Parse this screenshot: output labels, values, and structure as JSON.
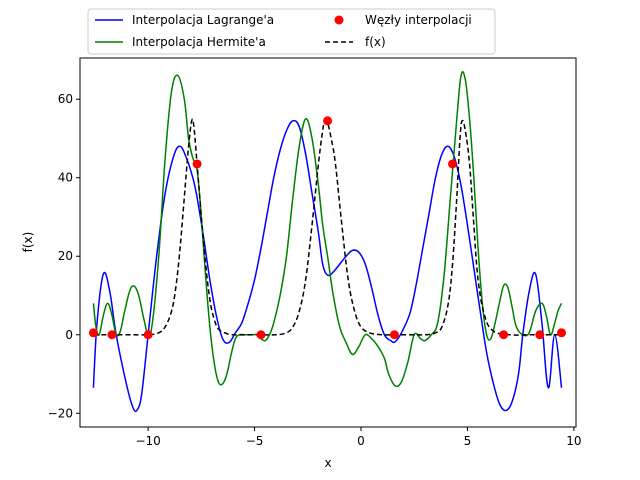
{
  "chart_data": {
    "type": "line",
    "title": "",
    "xlabel": "x",
    "ylabel": "f(x)",
    "xlim": [
      -13.2,
      10.1
    ],
    "ylim": [
      -23.5,
      70.5
    ],
    "xticks": [
      -10,
      -5,
      0,
      5,
      10
    ],
    "yticks": [
      -20,
      0,
      20,
      40,
      60
    ],
    "xtick_labels": [
      "−10",
      "−5",
      "0",
      "5",
      "10"
    ],
    "ytick_labels": [
      "−20",
      "0",
      "20",
      "40",
      "60"
    ],
    "grid": false,
    "legend": {
      "position": "top",
      "columns": 2
    },
    "series": [
      {
        "name": "Interpolacja Lagrange'a",
        "color": "#0000ff",
        "style": "solid",
        "x": [
          -12.57,
          -12.4,
          -12.1,
          -11.8,
          -11.5,
          -11.0,
          -10.7,
          -10.5,
          -10.3,
          -10.0,
          -9.6,
          -9.2,
          -8.8,
          -8.5,
          -8.2,
          -7.9,
          -7.7,
          -7.4,
          -7.1,
          -6.8,
          -6.5,
          -6.2,
          -5.9,
          -5.6,
          -5.3,
          -5.0,
          -4.7,
          -4.4,
          -4.1,
          -3.8,
          -3.5,
          -3.2,
          -2.9,
          -2.6,
          -2.3,
          -2.0,
          -1.8,
          -1.57,
          -1.3,
          -1.0,
          -0.7,
          -0.4,
          -0.1,
          0.2,
          0.5,
          0.8,
          1.1,
          1.4,
          1.6,
          1.9,
          2.3,
          2.6,
          2.9,
          3.2,
          3.5,
          3.8,
          4.1,
          4.4,
          4.7,
          5.0,
          5.3,
          5.6,
          5.9,
          6.2,
          6.5,
          6.8,
          7.1,
          7.4,
          7.6,
          7.9,
          8.2,
          8.5,
          8.8,
          9.1,
          9.42
        ],
        "y": [
          -13.5,
          3,
          15.5,
          11,
          0,
          -13,
          -18.7,
          -19,
          -15,
          0,
          20,
          36,
          45.5,
          48,
          45,
          40,
          35,
          25,
          14,
          5,
          -1,
          -2,
          0.5,
          3,
          8,
          14,
          22,
          31,
          40,
          47,
          52,
          54.5,
          53,
          46,
          36,
          26,
          18,
          15.2,
          16,
          18,
          20,
          21.5,
          21,
          18,
          12,
          5,
          0,
          -1.5,
          -1.8,
          0.5,
          5.5,
          13,
          22,
          31,
          40,
          46,
          48,
          45,
          38,
          28,
          17,
          6,
          -4.5,
          -12,
          -17.5,
          -19.3,
          -17,
          -10,
          0,
          11,
          15.5,
          3,
          -13.5,
          0,
          -13.5
        ]
      },
      {
        "name": "Interpolacja Hermite'a",
        "color": "#008000",
        "style": "solid",
        "x": [
          -12.57,
          -12.45,
          -12.3,
          -12.1,
          -11.9,
          -11.7,
          -11.5,
          -11.3,
          -11.1,
          -10.8,
          -10.5,
          -10.2,
          -10.0,
          -9.8,
          -9.5,
          -9.2,
          -8.9,
          -8.6,
          -8.3,
          -8.1,
          -7.9,
          -7.7,
          -7.5,
          -7.3,
          -7.1,
          -6.9,
          -6.7,
          -6.5,
          -6.3,
          -6.1,
          -5.9,
          -5.7,
          -5.5,
          -5.3,
          -5.1,
          -4.9,
          -4.7,
          -4.5,
          -4.3,
          -4.1,
          -3.8,
          -3.5,
          -3.2,
          -2.9,
          -2.6,
          -2.3,
          -2.0,
          -1.8,
          -1.57,
          -1.3,
          -1.0,
          -0.7,
          -0.4,
          -0.1,
          0.2,
          0.5,
          0.8,
          1.1,
          1.3,
          1.6,
          1.9,
          2.2,
          2.5,
          2.8,
          3.0,
          3.3,
          3.6,
          3.9,
          4.2,
          4.5,
          4.7,
          4.9,
          5.1,
          5.3,
          5.5,
          5.7,
          5.9,
          6.1,
          6.3,
          6.5,
          6.7,
          6.9,
          7.1,
          7.3,
          7.6,
          7.9,
          8.2,
          8.5,
          8.7,
          8.9,
          9.1,
          9.25,
          9.42
        ],
        "y": [
          8,
          2,
          0,
          5,
          8,
          5,
          0,
          1,
          6,
          12,
          11,
          4,
          0,
          3,
          20,
          45,
          62,
          66,
          60,
          50,
          45,
          42,
          30,
          15,
          2,
          -7,
          -12,
          -12.5,
          -10,
          -5,
          -1,
          0,
          0,
          0,
          0,
          0,
          -1,
          -1.5,
          0,
          3,
          10,
          20,
          35,
          48,
          55,
          50,
          38,
          28,
          20,
          10,
          2,
          -2,
          -5,
          -3,
          0,
          -1,
          -3,
          -6,
          -10,
          -13,
          -12,
          -7,
          0,
          -1,
          -1.5,
          0,
          3,
          15,
          35,
          55,
          66,
          65,
          55,
          40,
          22,
          8,
          0,
          -1,
          3,
          8,
          12.5,
          12,
          7,
          2,
          0,
          0.5,
          6,
          8,
          5,
          0,
          3,
          6,
          8
        ]
      },
      {
        "name": "f(x)",
        "color": "#000000",
        "style": "dashed",
        "x": [
          -12.57,
          -11.0,
          -10.0,
          -9.5,
          -9.2,
          -8.9,
          -8.7,
          -8.5,
          -8.3,
          -8.1,
          -7.95,
          -7.85,
          -7.7,
          -7.5,
          -7.3,
          -7.1,
          -6.9,
          -6.7,
          -6.4,
          -6.0,
          -5.0,
          -4.0,
          -3.5,
          -3.2,
          -2.9,
          -2.6,
          -2.3,
          -2.0,
          -1.8,
          -1.7,
          -1.57,
          -1.4,
          -1.2,
          -0.9,
          -0.6,
          -0.3,
          0.0,
          0.4,
          1.0,
          2.0,
          3.0,
          3.5,
          3.8,
          4.1,
          4.3,
          4.5,
          4.65,
          4.75,
          4.9,
          5.1,
          5.3,
          5.5,
          5.8,
          6.2,
          7.0,
          8.0,
          9.42
        ],
        "y": [
          0,
          0,
          0,
          0.5,
          2,
          6,
          12,
          22,
          35,
          48,
          54.5,
          53,
          43.5,
          30,
          18,
          9,
          4,
          1.5,
          0.5,
          0,
          0,
          0,
          0.5,
          2,
          6,
          14,
          28,
          43.5,
          52,
          54.5,
          54,
          50,
          43.5,
          28,
          14,
          6,
          2,
          0.5,
          0,
          0,
          0,
          0.5,
          2,
          8,
          18,
          35,
          50,
          54.5,
          52,
          43.5,
          28,
          14,
          5,
          1,
          0,
          0,
          0
        ]
      }
    ],
    "nodes": {
      "name": "Węzły interpolacji",
      "color": "#ff0000",
      "x": [
        -12.57,
        -11.7,
        -10.0,
        -7.7,
        -4.7,
        -1.57,
        1.57,
        4.3,
        6.7,
        8.4,
        9.42
      ],
      "y": [
        0.5,
        0,
        0,
        43.5,
        0,
        54.5,
        0,
        43.5,
        0,
        0,
        0.5
      ]
    }
  }
}
